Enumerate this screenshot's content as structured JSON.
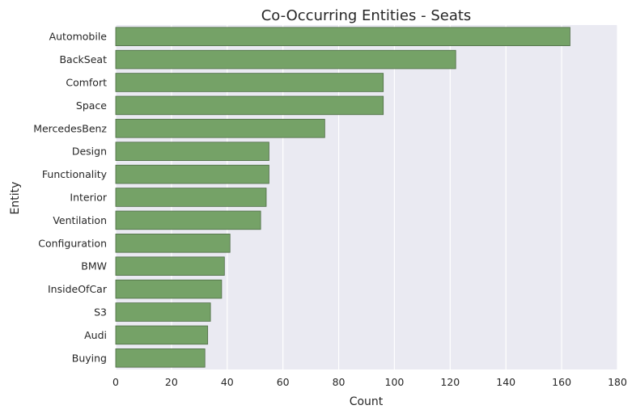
{
  "chart_data": {
    "type": "bar",
    "orientation": "horizontal",
    "title": "Co-Occurring Entities - Seats",
    "xlabel": "Count",
    "ylabel": "Entity",
    "categories": [
      "Automobile",
      "BackSeat",
      "Comfort",
      "Space",
      "MercedesBenz",
      "Design",
      "Functionality",
      "Interior",
      "Ventilation",
      "Configuration",
      "BMW",
      "InsideOfCar",
      "S3",
      "Audi",
      "Buying"
    ],
    "values": [
      163,
      122,
      96,
      96,
      75,
      55,
      55,
      54,
      52,
      41,
      39,
      38,
      34,
      33,
      32
    ],
    "xlim": [
      0,
      180
    ],
    "xticks": [
      0,
      20,
      40,
      60,
      80,
      100,
      120,
      140,
      160,
      180
    ],
    "grid": true,
    "colors": {
      "bar": "#75a267",
      "bar_edge": "#4d6b44",
      "plot_background": "#eaeaf2",
      "grid": "#ffffff",
      "text": "#262626"
    }
  }
}
